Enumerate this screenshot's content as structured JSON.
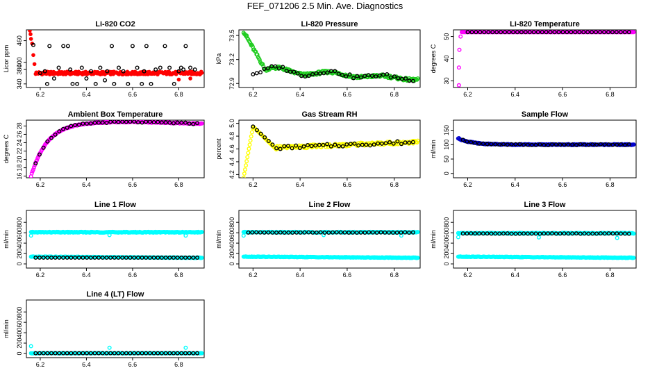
{
  "page": {
    "title": "FEF_071206  2.5 Min. Ave. Diagnostics"
  },
  "colors": {
    "red": "#ff0000",
    "green": "#1fcc1f",
    "magenta": "#ff00ff",
    "yellow": "#ffff00",
    "blue": "#0000cc",
    "cyan": "#00ffff",
    "black": "#000000"
  },
  "chart_data": [
    {
      "id": "co2",
      "type": "scatter",
      "title": "Li-820 CO2",
      "ylabel": "Licor ppm",
      "xlim": [
        6.14,
        6.91
      ],
      "ylim": [
        330,
        490
      ],
      "xticks": [
        "6.2",
        "6.4",
        "6.6",
        "6.8"
      ],
      "yticks": [
        "340",
        "380",
        "400",
        "460"
      ],
      "ytick_values": [
        340,
        380,
        400,
        460
      ],
      "series": [
        {
          "name": "co2-5min",
          "color": "red",
          "gen": "co2"
        },
        {
          "name": "co2-samples",
          "color": "black",
          "hollow": true,
          "points": [
            [
              6.17,
              448
            ],
            [
              6.2,
              370
            ],
            [
              6.22,
              375
            ],
            [
              6.23,
              340
            ],
            [
              6.24,
              445
            ],
            [
              6.26,
              355
            ],
            [
              6.28,
              385
            ],
            [
              6.3,
              445
            ],
            [
              6.32,
              445
            ],
            [
              6.33,
              380
            ],
            [
              6.34,
              340
            ],
            [
              6.36,
              340
            ],
            [
              6.38,
              385
            ],
            [
              6.4,
              355
            ],
            [
              6.42,
              375
            ],
            [
              6.44,
              340
            ],
            [
              6.46,
              385
            ],
            [
              6.48,
              350
            ],
            [
              6.49,
              375
            ],
            [
              6.51,
              445
            ],
            [
              6.52,
              340
            ],
            [
              6.54,
              385
            ],
            [
              6.56,
              375
            ],
            [
              6.58,
              340
            ],
            [
              6.6,
              445
            ],
            [
              6.62,
              385
            ],
            [
              6.64,
              340
            ],
            [
              6.65,
              375
            ],
            [
              6.66,
              445
            ],
            [
              6.68,
              340
            ],
            [
              6.7,
              380
            ],
            [
              6.72,
              385
            ],
            [
              6.74,
              445
            ],
            [
              6.76,
              385
            ],
            [
              6.78,
              340
            ],
            [
              6.8,
              375
            ],
            [
              6.81,
              385
            ],
            [
              6.82,
              380
            ],
            [
              6.83,
              445
            ],
            [
              6.85,
              385
            ],
            [
              6.87,
              380
            ]
          ]
        }
      ]
    },
    {
      "id": "pressure",
      "type": "scatter",
      "title": "Li-820 Pressure",
      "ylabel": "kPa",
      "xlim": [
        6.14,
        6.91
      ],
      "ylim": [
        72.85,
        73.57
      ],
      "xticks": [
        "6.2",
        "6.4",
        "6.6",
        "6.8"
      ],
      "yticks": [
        "72.9",
        "73.2",
        "73.5"
      ],
      "ytick_values": [
        72.9,
        73.2,
        73.5
      ],
      "series": [
        {
          "name": "pressure-5min",
          "color": "green",
          "hollow": true,
          "gen": "pressure"
        },
        {
          "name": "pressure-samples",
          "color": "black",
          "hollow": true,
          "gen": "pressureB"
        }
      ]
    },
    {
      "id": "temperature",
      "type": "scatter",
      "title": "Li-820 Temperature",
      "ylabel": "degrees C",
      "xlim": [
        6.14,
        6.91
      ],
      "ylim": [
        27,
        53
      ],
      "xticks": [
        "6.2",
        "6.4",
        "6.6",
        "6.8"
      ],
      "yticks": [
        "30",
        "40",
        "50"
      ],
      "ytick_values": [
        30,
        40,
        50
      ],
      "series": [
        {
          "name": "temp-5min",
          "color": "magenta",
          "hollow": true,
          "gen": "licorTemp"
        },
        {
          "name": "temp-samples",
          "color": "black",
          "hollow": true,
          "gen": "licorTempB"
        }
      ]
    },
    {
      "id": "ambient",
      "type": "scatter",
      "title": "Ambient Box Temperature",
      "ylabel": "degrees C",
      "xlim": [
        6.14,
        6.91
      ],
      "ylim": [
        15.6,
        29.4
      ],
      "xticks": [
        "6.2",
        "6.4",
        "6.6",
        "6.8"
      ],
      "yticks": [
        "16",
        "18",
        "20",
        "22",
        "24",
        "26",
        "28"
      ],
      "ytick_values": [
        16,
        18,
        20,
        22,
        24,
        26,
        28
      ],
      "series": [
        {
          "name": "ambient-5min",
          "color": "magenta",
          "hollow": true,
          "gen": "ambient"
        },
        {
          "name": "ambient-samples",
          "color": "black",
          "hollow": true,
          "gen": "ambientB"
        }
      ]
    },
    {
      "id": "rh",
      "type": "scatter",
      "title": "Gas Stream RH",
      "ylabel": "percent",
      "xlim": [
        6.14,
        6.91
      ],
      "ylim": [
        4.15,
        5.05
      ],
      "xticks": [
        "6.2",
        "6.4",
        "6.6",
        "6.8"
      ],
      "yticks": [
        "4.2",
        "4.4",
        "4.6",
        "4.8",
        "5.0"
      ],
      "ytick_values": [
        4.2,
        4.4,
        4.6,
        4.8,
        5.0
      ],
      "series": [
        {
          "name": "rh-5min",
          "color": "yellow",
          "hollow": true,
          "gen": "rh"
        },
        {
          "name": "rh-samples",
          "color": "black",
          "hollow": true,
          "gen": "rhB"
        }
      ]
    },
    {
      "id": "sampleflow",
      "type": "scatter",
      "title": "Sample Flow",
      "ylabel": "ml/min",
      "xlim": [
        6.14,
        6.91
      ],
      "ylim": [
        -15,
        185
      ],
      "xticks": [
        "6.2",
        "6.4",
        "6.6",
        "6.8"
      ],
      "yticks": [
        "0",
        "50",
        "100",
        "150"
      ],
      "ytick_values": [
        0,
        50,
        100,
        150
      ],
      "series": [
        {
          "name": "sampleflow-5min",
          "color": "blue",
          "hollow": true,
          "gen": "sampleflow"
        },
        {
          "name": "sampleflow-samples",
          "color": "black",
          "hollow": true,
          "gen": "sampleflowB"
        }
      ]
    },
    {
      "id": "line1",
      "type": "scatter",
      "title": "Line 1 Flow",
      "ylabel": "ml/min",
      "xlim": [
        6.14,
        6.91
      ],
      "ylim": [
        -80,
        1030
      ],
      "xticks": [
        "6.2",
        "6.4",
        "6.6",
        "6.8"
      ],
      "yticks": [
        "0",
        "200",
        "400",
        "600",
        "800"
      ],
      "ytick_values": [
        0,
        200,
        400,
        600,
        800
      ],
      "series": [
        {
          "name": "line1-high",
          "color": "cyan",
          "hollow": true,
          "gen": "flatHigh"
        },
        {
          "name": "line1-low",
          "color": "cyan",
          "hollow": true,
          "gen": "flatLow"
        },
        {
          "name": "line1-samples",
          "color": "black",
          "hollow": true,
          "gen": "flatLowB"
        }
      ]
    },
    {
      "id": "line2",
      "type": "scatter",
      "title": "Line 2 Flow",
      "ylabel": "ml/min",
      "xlim": [
        6.14,
        6.91
      ],
      "ylim": [
        -80,
        1030
      ],
      "xticks": [
        "6.2",
        "6.4",
        "6.6",
        "6.8"
      ],
      "yticks": [
        "0",
        "200",
        "400",
        "600",
        "800"
      ],
      "ytick_values": [
        0,
        200,
        400,
        600,
        800
      ],
      "series": [
        {
          "name": "line2-high",
          "color": "cyan",
          "hollow": true,
          "gen": "flatHigh"
        },
        {
          "name": "line2-low",
          "color": "cyan",
          "hollow": true,
          "gen": "flatLow"
        },
        {
          "name": "line2-samples",
          "color": "black",
          "hollow": true,
          "gen": "flatHighB"
        }
      ]
    },
    {
      "id": "line3",
      "type": "scatter",
      "title": "Line 3 Flow",
      "ylabel": "ml/min",
      "xlim": [
        6.14,
        6.91
      ],
      "ylim": [
        -80,
        1030
      ],
      "xticks": [
        "6.2",
        "6.4",
        "6.6",
        "6.8"
      ],
      "yticks": [
        "0",
        "200",
        "400",
        "600",
        "800"
      ],
      "ytick_values": [
        0,
        200,
        400,
        600,
        800
      ],
      "series": [
        {
          "name": "line3-high",
          "color": "cyan",
          "hollow": true,
          "gen": "flatHigh3"
        },
        {
          "name": "line3-low",
          "color": "cyan",
          "hollow": true,
          "gen": "flatLow"
        },
        {
          "name": "line3-samples",
          "color": "black",
          "hollow": true,
          "gen": "flatHigh3B"
        }
      ]
    },
    {
      "id": "line4",
      "type": "scatter",
      "title": "Line 4 (LT) Flow",
      "ylabel": "ml/min",
      "xlim": [
        6.14,
        6.91
      ],
      "ylim": [
        -80,
        1030
      ],
      "xticks": [
        "6.2",
        "6.4",
        "6.6",
        "6.8"
      ],
      "yticks": [
        "0",
        "200",
        "400",
        "600",
        "800"
      ],
      "ytick_values": [
        0,
        200,
        400,
        600,
        800
      ],
      "series": [
        {
          "name": "line4-flow",
          "color": "cyan",
          "hollow": true,
          "gen": "flatZero"
        },
        {
          "name": "line4-samples",
          "color": "black",
          "hollow": true,
          "gen": "flatZeroB"
        }
      ]
    }
  ]
}
